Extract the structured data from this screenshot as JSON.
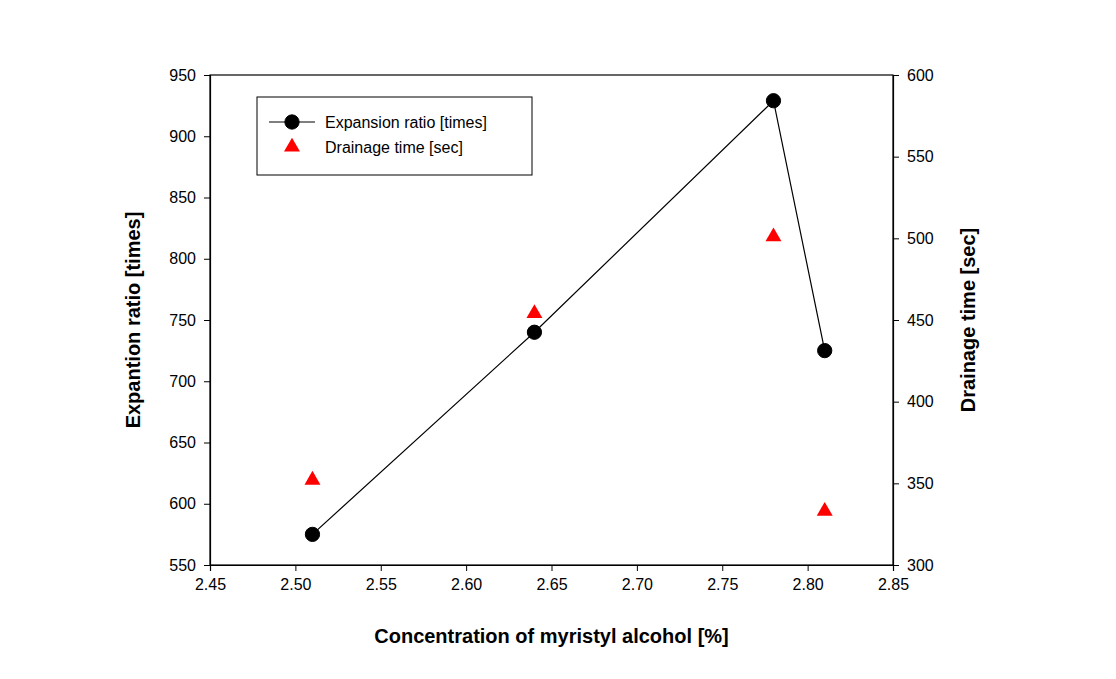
{
  "chart_data": {
    "type": "line",
    "x_label": "Concentration of myristyl alcohol [%]",
    "y_label": "Expantion ratio [times]",
    "y2_label": "Drainage time [sec]",
    "x": [
      2.51,
      2.64,
      2.78,
      2.81
    ],
    "series": [
      {
        "name": "Expansion ratio [times]",
        "color": "#000000",
        "marker": "circle",
        "line_style": "solid",
        "type": "line",
        "values": [
          575,
          740,
          929,
          725
        ]
      },
      {
        "name": "Drainage time [sec]",
        "color": "#ff0000",
        "marker": "triangle",
        "line_style": "none",
        "type": "scatter",
        "axis": "y2",
        "values": [
          352,
          454,
          501,
          333
        ]
      }
    ],
    "xlim": [
      2.45,
      2.85
    ],
    "xticks": [
      2.45,
      {
        "value": 2.5,
        "label": "2.50"
      },
      2.55,
      {
        "value": 2.6,
        "label": "2.60"
      },
      2.65,
      {
        "value": 2.7,
        "label": "2.70"
      },
      2.75,
      {
        "value": 2.8,
        "label": "2.80"
      },
      2.85
    ],
    "ylim": [
      550,
      950
    ],
    "yticks": [
      550,
      600,
      650,
      700,
      750,
      800,
      850,
      900,
      950
    ],
    "y2lim": [
      300,
      600
    ],
    "y2ticks": [
      300,
      350,
      400,
      450,
      500,
      550,
      600
    ],
    "legend": "upper left",
    "grid": false
  }
}
